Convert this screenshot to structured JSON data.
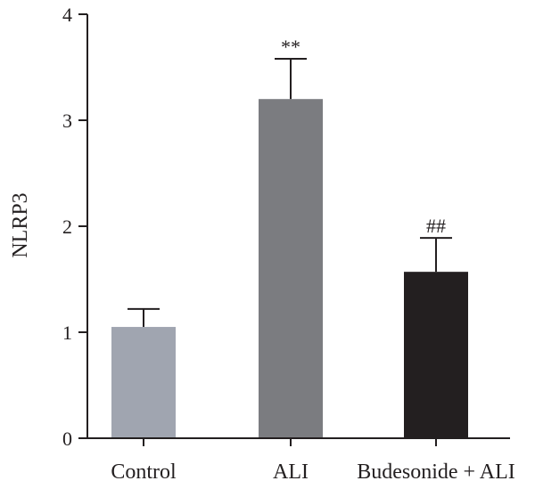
{
  "chart_data": {
    "type": "bar",
    "categories": [
      "Control",
      "ALI",
      "Budesonide + ALI"
    ],
    "values": [
      1.05,
      3.2,
      1.57
    ],
    "errors": [
      0.17,
      0.38,
      0.32
    ],
    "annotations": [
      "",
      "**",
      "##"
    ],
    "colors": [
      "#a0a5b0",
      "#7b7c80",
      "#231f20"
    ],
    "ylabel": "NLRP3",
    "xlabel": "",
    "ylim": [
      0,
      4
    ],
    "yticks": [
      "0",
      "1",
      "2",
      "3",
      "4"
    ],
    "grid": false
  }
}
